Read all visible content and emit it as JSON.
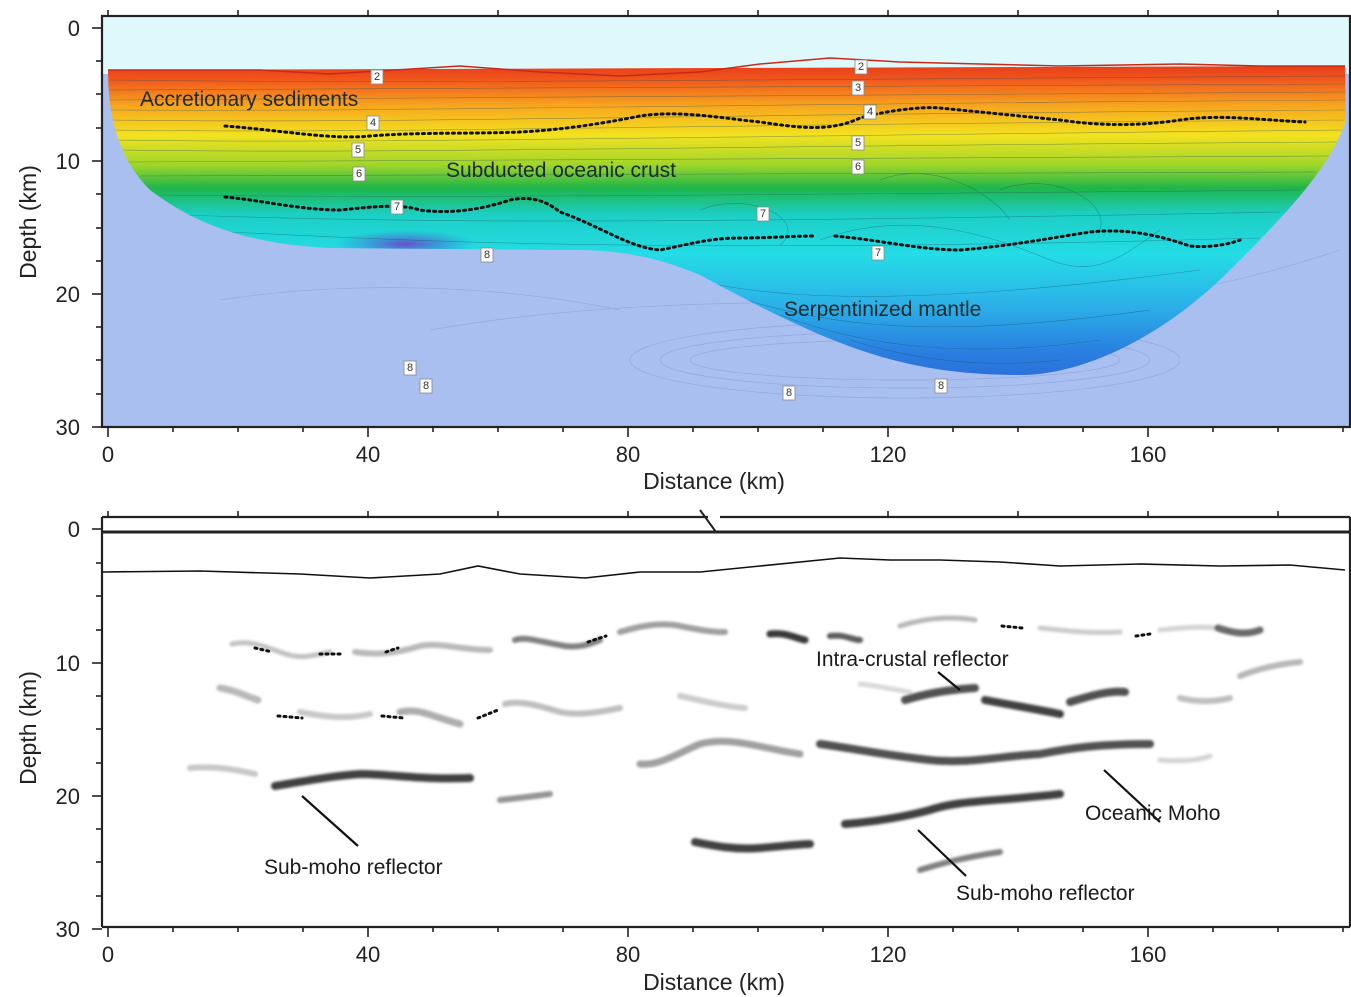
{
  "top_panel": {
    "y_ticks": [
      "0",
      "10",
      "20",
      "30"
    ],
    "x_ticks": [
      "0",
      "40",
      "80",
      "120",
      "160"
    ],
    "ylabel": "Depth (km)",
    "xlabel": "Distance (km)",
    "labels": {
      "sediments": "Accretionary sediments",
      "crust": "Subducted oceanic crust",
      "mantle": "Serpentinized mantle"
    },
    "velocity_labels": [
      "2",
      "4",
      "5",
      "6",
      "7",
      "8",
      "2",
      "3",
      "4",
      "5",
      "6",
      "7",
      "7",
      "8",
      "8",
      "8",
      "8",
      "8"
    ],
    "colors": {
      "water": "#dff8fb",
      "red": "#e8311c",
      "orange": "#f59a1c",
      "yellow": "#f3e01e",
      "green": "#22b548",
      "cyan": "#1fd6e2",
      "blue": "#2a7ee0",
      "mantle_bg": "#a9bff0"
    }
  },
  "bottom_panel": {
    "y_ticks": [
      "0",
      "10",
      "20",
      "30"
    ],
    "x_ticks": [
      "0",
      "40",
      "80",
      "120",
      "160"
    ],
    "ylabel": "Depth (km)",
    "xlabel": "Distance (km)",
    "labels": {
      "intra": "Intra-crustal reflector",
      "moho": "Oceanic Moho",
      "submoho_left": "Sub-moho reflector",
      "submoho_right": "Sub-moho reflector"
    }
  }
}
